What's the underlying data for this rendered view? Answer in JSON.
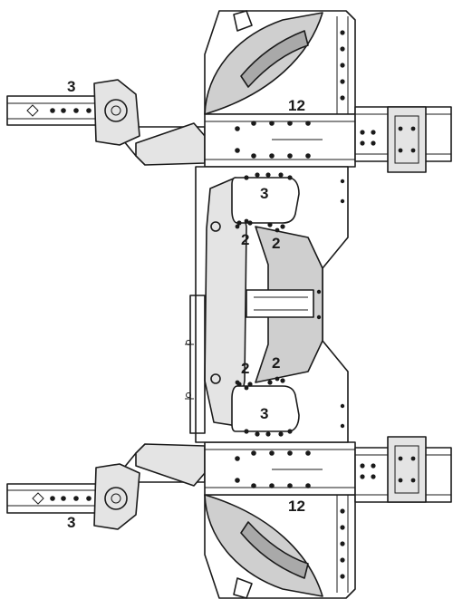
{
  "colors": {
    "ink": "#1a1a1a",
    "panel_light": "#ffffff",
    "panel_shade": "#e4e4e4",
    "panel_mid": "#cfcfcf",
    "panel_dark": "#a9a9a9"
  },
  "callouts": {
    "rail_front_left": "3",
    "rail_rear_left": "3",
    "wheelhouse_upper": "12",
    "wheelhouse_lower": "12",
    "pocket_upper": "3",
    "pocket_lower": "3",
    "bracket_upper_left": "2",
    "bracket_upper_right": "2",
    "bracket_lower_left": "2",
    "bracket_lower_right": "2"
  }
}
